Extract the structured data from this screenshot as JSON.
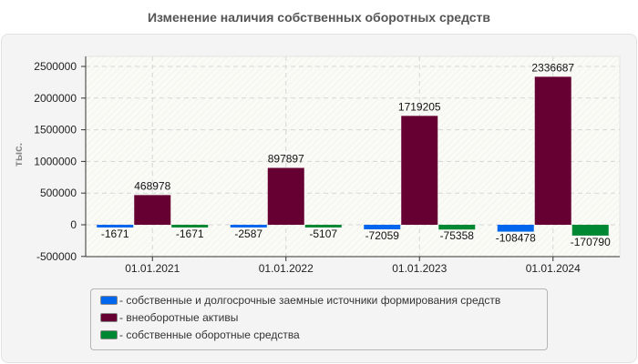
{
  "title": "Изменение наличия собственных оборотных средств",
  "chart_data": {
    "type": "bar",
    "title": "Изменение наличия собственных оборотных средств",
    "xlabel": "",
    "ylabel": "тыс.",
    "ylim": [
      -500000,
      2500000
    ],
    "yticks": [
      "2500000",
      "2000000",
      "1500000",
      "1000000",
      "500000",
      "0",
      "-500000"
    ],
    "categories": [
      "01.01.2021",
      "01.01.2022",
      "01.01.2023",
      "01.01.2024"
    ],
    "series": [
      {
        "name": "- собственные и долгосрочные заемные источники формирования средств",
        "color": "#0066ee",
        "values": [
          -1671,
          -2587,
          -72059,
          -108478
        ],
        "labels": [
          "-1671",
          "-2587",
          "-72059",
          "-108478"
        ]
      },
      {
        "name": "- внеоборотные активы",
        "color": "#660033",
        "values": [
          468978,
          897897,
          1719205,
          2336687
        ],
        "labels": [
          "468978",
          "897897",
          "1719205",
          "2336687"
        ]
      },
      {
        "name": "- собственные оборотные средства",
        "color": "#008833",
        "values": [
          -1671,
          -5107,
          -75358,
          -170790
        ],
        "labels": [
          "-1671",
          "-5107",
          "-75358",
          "-170790"
        ]
      }
    ],
    "grid": true,
    "legend_position": "bottom"
  },
  "legend": {
    "items": [
      {
        "label": "- собственные и долгосрочные заемные источники формирования средств",
        "color": "#0066ee"
      },
      {
        "label": "- внеоборотные активы",
        "color": "#660033"
      },
      {
        "label": "- собственные оборотные средства",
        "color": "#008833"
      }
    ]
  }
}
